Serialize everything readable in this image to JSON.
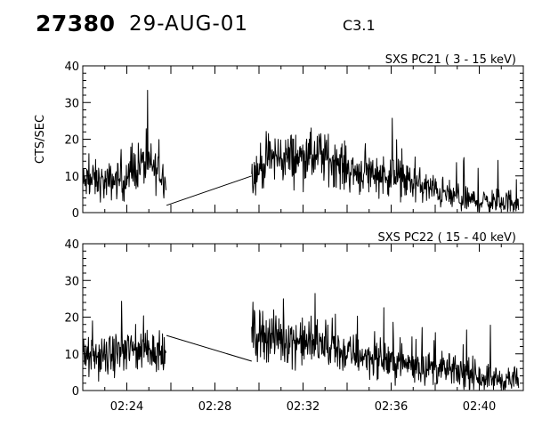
{
  "header": {
    "event_number": "27380",
    "date": "29-AUG-01",
    "goes_class": "C3.1"
  },
  "chart_data": [
    {
      "type": "line",
      "title": "SXS PC21  (  3 - 15 keV)",
      "ylabel": "CTS/SEC",
      "xlabel": "",
      "xlim": [
        "02:22",
        "02:42"
      ],
      "ylim": [
        0,
        40
      ],
      "y_ticks": [
        0,
        10,
        20,
        30,
        40
      ],
      "x_ticks": [
        "02:24",
        "02:28",
        "02:32",
        "02:36",
        "02:40"
      ],
      "grid": false,
      "series": [
        {
          "segments": [
            {
              "x": [
                "02:22:00",
                "02:22:30",
                "02:23:00",
                "02:23:30",
                "02:24:00",
                "02:24:30",
                "02:25:00",
                "02:25:30",
                "02:25:48"
              ],
              "y": [
                8,
                9,
                8,
                9,
                9,
                13,
                13,
                11,
                9
              ]
            },
            {
              "x": [
                "02:25:48",
                "02:29:40"
              ],
              "y": [
                2,
                10
              ]
            },
            {
              "x": [
                "02:29:40",
                "02:30:30",
                "02:31:00",
                "02:31:30",
                "02:32:00",
                "02:32:30",
                "02:33:00",
                "02:33:30",
                "02:34:00",
                "02:34:30",
                "02:35:00",
                "02:36:00",
                "02:37:00",
                "02:38:00",
                "02:39:00",
                "02:40:00",
                "02:41:00",
                "02:41:48"
              ],
              "y": [
                10,
                15,
                15,
                15,
                15,
                15,
                15,
                14,
                12,
                11,
                11,
                10,
                8,
                6,
                4,
                3,
                3,
                3
              ]
            }
          ]
        }
      ]
    },
    {
      "type": "line",
      "title": "SXS PC22  ( 15 - 40 keV)",
      "ylabel": "",
      "xlabel": "",
      "xlim": [
        "02:22",
        "02:42"
      ],
      "ylim": [
        0,
        40
      ],
      "y_ticks": [
        0,
        10,
        20,
        30,
        40
      ],
      "x_ticks": [
        "02:24",
        "02:28",
        "02:32",
        "02:36",
        "02:40"
      ],
      "grid": false,
      "series": [
        {
          "segments": [
            {
              "x": [
                "02:22:00",
                "02:22:30",
                "02:23:00",
                "02:23:30",
                "02:24:00",
                "02:24:30",
                "02:25:00",
                "02:25:30",
                "02:25:48"
              ],
              "y": [
                9,
                9,
                9,
                10,
                11,
                11,
                12,
                10,
                9
              ]
            },
            {
              "x": [
                "02:25:48",
                "02:29:40"
              ],
              "y": [
                15,
                8
              ]
            },
            {
              "x": [
                "02:29:40",
                "02:30:30",
                "02:31:00",
                "02:31:30",
                "02:32:00",
                "02:32:30",
                "02:33:00",
                "02:33:30",
                "02:34:00",
                "02:34:30",
                "02:35:00",
                "02:36:00",
                "02:37:00",
                "02:38:00",
                "02:39:00",
                "02:40:00",
                "02:41:00",
                "02:41:48"
              ],
              "y": [
                16,
                15,
                14,
                14,
                13,
                13,
                12,
                11,
                10,
                10,
                9,
                8,
                7,
                6,
                5,
                4,
                3,
                3
              ]
            }
          ]
        }
      ]
    }
  ]
}
